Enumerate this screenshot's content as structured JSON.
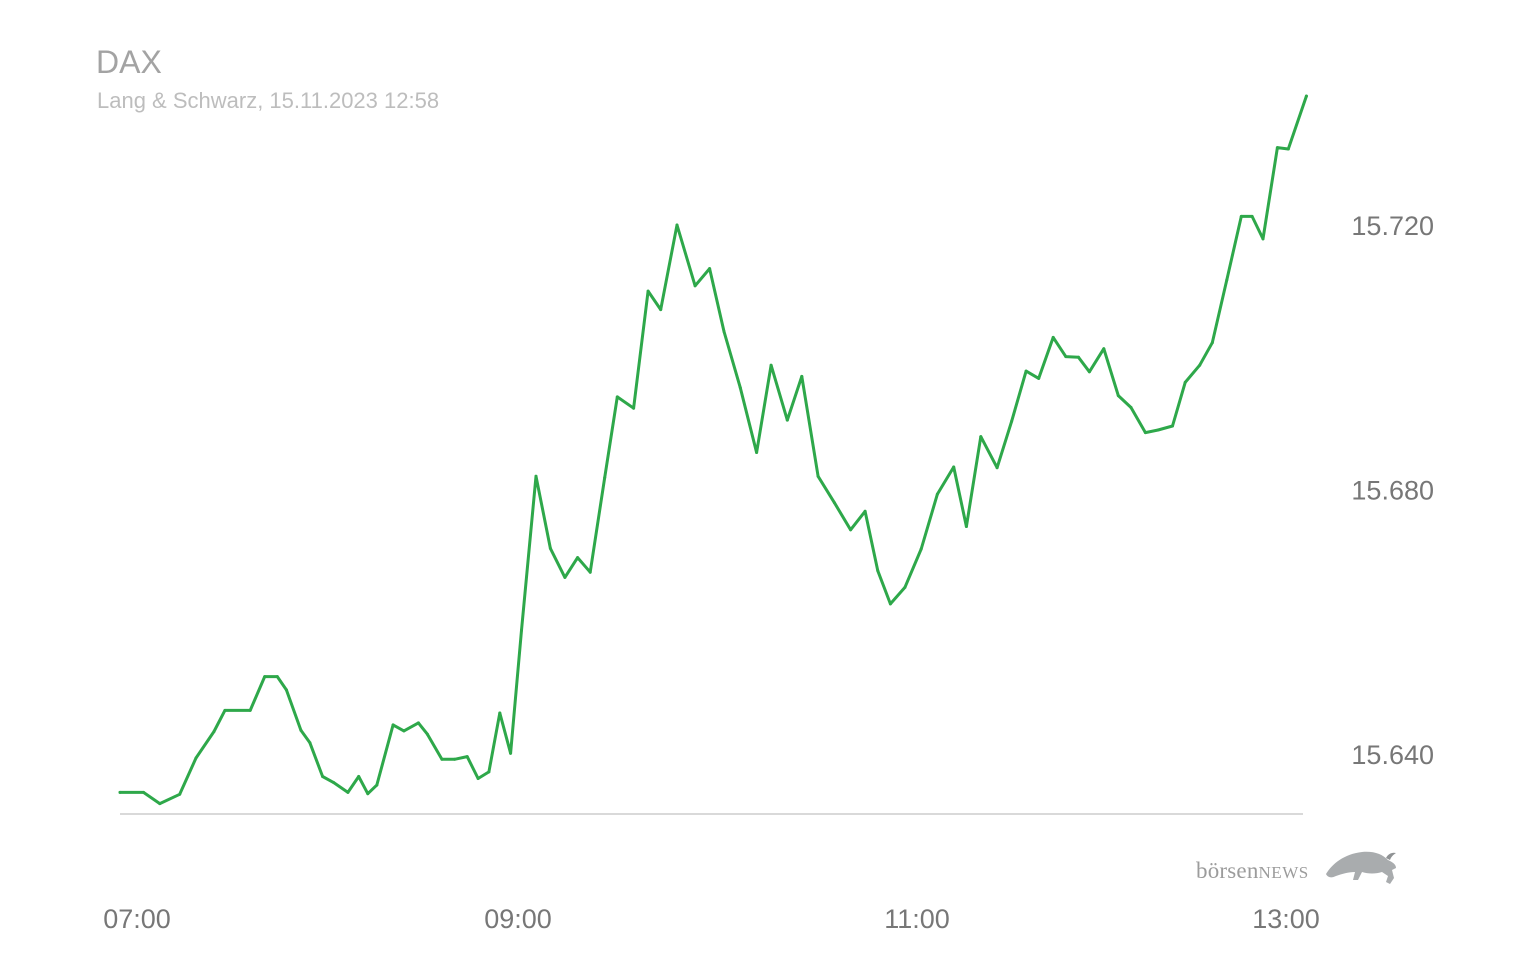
{
  "header": {
    "title": "DAX",
    "subtitle": "Lang & Schwarz, 15.11.2023 12:58"
  },
  "brand": {
    "name_lower": "börsen",
    "name_upper": "NEWS"
  },
  "colors": {
    "line": "#2ea84a",
    "baseline": "#d9d9d9",
    "ticks": "#777777"
  },
  "chart_data": {
    "type": "line",
    "title": "DAX",
    "subtitle": "Lang & Schwarz, 15.11.2023 12:58",
    "xlabel": "",
    "ylabel": "",
    "x_unit": "hours since 07:00",
    "x_ticks": [
      {
        "label": "07:00",
        "value": 0
      },
      {
        "label": "09:00",
        "value": 2
      },
      {
        "label": "11:00",
        "value": 4
      },
      {
        "label": "13:00",
        "value": 6
      }
    ],
    "y_ticks": [
      {
        "label": "15.640",
        "value": 15640
      },
      {
        "label": "15.680",
        "value": 15680
      },
      {
        "label": "15.720",
        "value": 15720
      }
    ],
    "ylim": [
      15631,
      15738
    ],
    "grid": false,
    "legend": "none",
    "series": [
      {
        "values": [
          [
            0.0,
            15634.2
          ],
          [
            0.13,
            15634.2
          ],
          [
            0.22,
            15632.5
          ],
          [
            0.33,
            15633.9
          ],
          [
            0.42,
            15639.4
          ],
          [
            0.52,
            15643.4
          ],
          [
            0.58,
            15646.6
          ],
          [
            0.72,
            15646.6
          ],
          [
            0.8,
            15651.7
          ],
          [
            0.87,
            15651.7
          ],
          [
            0.92,
            15649.7
          ],
          [
            1.0,
            15643.6
          ],
          [
            1.05,
            15641.7
          ],
          [
            1.12,
            15636.6
          ],
          [
            1.18,
            15635.7
          ],
          [
            1.26,
            15634.2
          ],
          [
            1.32,
            15636.6
          ],
          [
            1.37,
            15634.0
          ],
          [
            1.42,
            15635.3
          ],
          [
            1.51,
            15644.4
          ],
          [
            1.57,
            15643.5
          ],
          [
            1.65,
            15644.7
          ],
          [
            1.7,
            15643.0
          ],
          [
            1.78,
            15639.2
          ],
          [
            1.85,
            15639.2
          ],
          [
            1.92,
            15639.6
          ],
          [
            1.98,
            15636.3
          ],
          [
            2.04,
            15637.3
          ],
          [
            2.1,
            15646.2
          ],
          [
            2.16,
            15640.1
          ],
          [
            2.22,
            15658.7
          ],
          [
            2.3,
            15682.0
          ],
          [
            2.38,
            15671.1
          ],
          [
            2.46,
            15666.7
          ],
          [
            2.53,
            15669.7
          ],
          [
            2.6,
            15667.5
          ],
          [
            2.68,
            15681.8
          ],
          [
            2.75,
            15694.0
          ],
          [
            2.84,
            15692.3
          ],
          [
            2.92,
            15710.0
          ],
          [
            2.99,
            15707.2
          ],
          [
            3.08,
            15720.0
          ],
          [
            3.18,
            15710.8
          ],
          [
            3.26,
            15713.4
          ],
          [
            3.34,
            15703.9
          ],
          [
            3.43,
            15695.4
          ],
          [
            3.52,
            15685.6
          ],
          [
            3.6,
            15698.8
          ],
          [
            3.69,
            15690.5
          ],
          [
            3.77,
            15697.1
          ],
          [
            3.86,
            15682.0
          ],
          [
            3.95,
            15678.0
          ],
          [
            4.04,
            15673.9
          ],
          [
            4.12,
            15676.7
          ],
          [
            4.19,
            15667.7
          ],
          [
            4.26,
            15662.7
          ],
          [
            4.34,
            15665.2
          ],
          [
            4.43,
            15671.0
          ],
          [
            4.52,
            15679.3
          ],
          [
            4.61,
            15683.4
          ],
          [
            4.68,
            15674.4
          ],
          [
            4.76,
            15688.0
          ],
          [
            4.85,
            15683.3
          ],
          [
            4.93,
            15690.3
          ],
          [
            5.01,
            15697.9
          ],
          [
            5.08,
            15696.8
          ],
          [
            5.16,
            15703.0
          ],
          [
            5.23,
            15700.1
          ],
          [
            5.3,
            15700.0
          ],
          [
            5.36,
            15697.8
          ],
          [
            5.44,
            15701.3
          ],
          [
            5.52,
            15694.2
          ],
          [
            5.59,
            15692.4
          ],
          [
            5.67,
            15688.6
          ],
          [
            5.74,
            15689.0
          ],
          [
            5.82,
            15689.6
          ],
          [
            5.89,
            15696.2
          ],
          [
            5.97,
            15698.8
          ],
          [
            6.04,
            15702.2
          ],
          [
            6.12,
            15711.7
          ],
          [
            6.2,
            15721.3
          ],
          [
            6.26,
            15721.3
          ],
          [
            6.32,
            15717.9
          ],
          [
            6.4,
            15731.7
          ],
          [
            6.46,
            15731.5
          ],
          [
            6.56,
            15739.5
          ]
        ]
      }
    ]
  }
}
